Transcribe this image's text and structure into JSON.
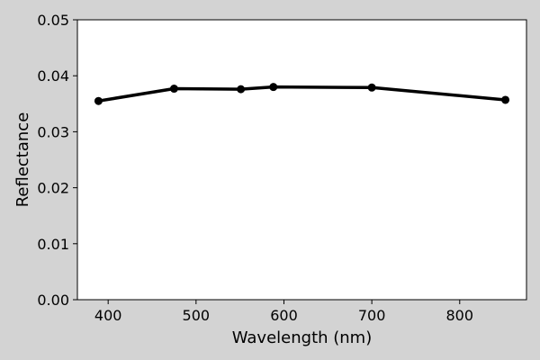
{
  "chart_data": {
    "type": "line",
    "title": "",
    "xlabel": "Wavelength (nm)",
    "ylabel": "Reflectance",
    "xlim": [
      365,
      876
    ],
    "ylim": [
      0.0,
      0.05
    ],
    "xticks": [
      400,
      500,
      600,
      700,
      800
    ],
    "yticks": [
      0.0,
      0.01,
      0.02,
      0.03,
      0.04,
      0.05
    ],
    "xtick_labels": [
      "400",
      "500",
      "600",
      "700",
      "800"
    ],
    "ytick_labels": [
      "0.00",
      "0.01",
      "0.02",
      "0.03",
      "0.04",
      "0.05"
    ],
    "grid": false,
    "series": [
      {
        "x": [
          389,
          475,
          551,
          588,
          700,
          852
        ],
        "y": [
          0.0355,
          0.0377,
          0.0376,
          0.038,
          0.0379,
          0.0357
        ],
        "color": "#000000",
        "marker": "circle"
      }
    ]
  },
  "colors": {
    "background": "#d3d3d3",
    "plot_area": "#ffffff",
    "line": "#000000"
  }
}
